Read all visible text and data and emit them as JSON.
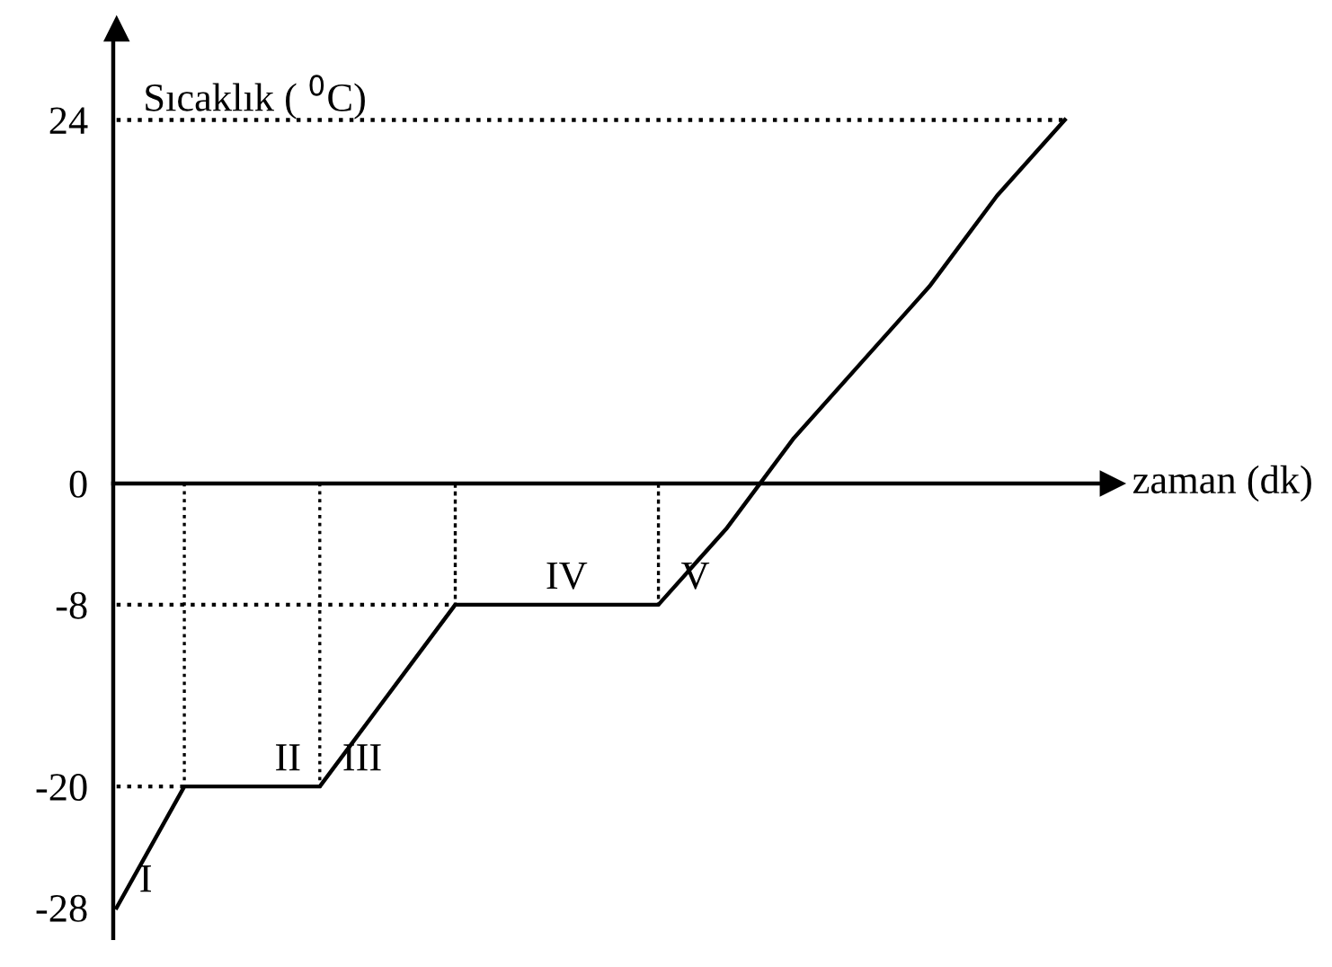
{
  "chart_data": {
    "type": "line",
    "ylabel": "Sıcaklık ( $^{0}$C)",
    "xlabel": "zaman (dk)",
    "categories": [
      null,
      null,
      null,
      null,
      null,
      null,
      null,
      null,
      null,
      null,
      null,
      null,
      null,
      null,
      null
    ],
    "ylim": [
      -30,
      30
    ],
    "yticks": [
      -28,
      -20,
      -8,
      0,
      24
    ],
    "tick_labels": "y",
    "legend": false,
    "series": [
      {
        "color": "#000000",
        "line_style": "solid",
        "values": [
          -28,
          -20,
          -20,
          -20,
          -14,
          -8,
          -8,
          -8,
          -8,
          -3,
          3,
          8,
          13,
          19,
          24
        ],
        "value_labels": [
          "I",
          null,
          "II",
          "III",
          null,
          null,
          "IV",
          null,
          "V",
          null,
          null,
          null,
          null,
          null,
          null
        ]
      },
      {
        "color": "#000000",
        "line_style": "dotted",
        "values": [
          24,
          24,
          24,
          24,
          24,
          24,
          24,
          24,
          24,
          24,
          24,
          24,
          24,
          24,
          24
        ]
      },
      {
        "color": "#000000",
        "line_style": "dotted",
        "values": [
          -8,
          -8,
          -8,
          -8,
          -8,
          -8,
          null,
          null,
          null,
          null,
          null,
          null,
          null,
          null,
          null
        ]
      },
      {
        "color": "#000000",
        "line_style": "dotted",
        "values": [
          -20,
          -20,
          null,
          null,
          null,
          null,
          null,
          null,
          null,
          null,
          null,
          null,
          null,
          null,
          null
        ]
      },
      {
        "type": "bar",
        "color": "#000000",
        "line_style": "dotted",
        "values": [
          null,
          -20,
          null,
          -20,
          null,
          -8,
          null,
          null,
          -8,
          null,
          null,
          null,
          null,
          null,
          null
        ]
      }
    ]
  }
}
